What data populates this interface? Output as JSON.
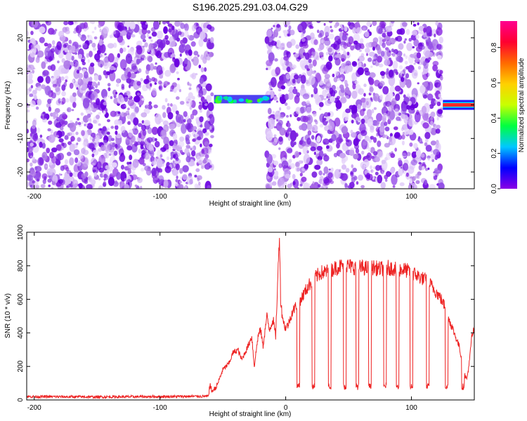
{
  "title": "S196.2025.291.03.04.G29",
  "chart_data": [
    {
      "type": "heatmap",
      "panel": "spectrogram",
      "xlabel": "Height of straight line (km)",
      "ylabel": "Frequency (Hz)",
      "xlim": [
        -206,
        150
      ],
      "ylim": [
        -25,
        25
      ],
      "xticks": [
        -200,
        -100,
        0,
        100
      ],
      "yticks": [
        20,
        10,
        0,
        -10,
        -20
      ],
      "colorbar": {
        "label": "Normalized spectral amplitude",
        "range": [
          0.0,
          0.95
        ],
        "ticks": [
          0.0,
          0.2,
          0.4,
          0.6,
          0.8
        ],
        "colormap": [
          "#8a00e6",
          "#0000ff",
          "#00c8ff",
          "#00ff40",
          "#c8ff00",
          "#ffd000",
          "#ff6a00",
          "#ff0030",
          "#ff0090"
        ]
      },
      "noise_color": "#8a2be2",
      "noise_regions_km": [
        [
          -206,
          -58
        ],
        [
          -15,
          124
        ]
      ],
      "signal_segments": [
        {
          "x_start": -57,
          "x_end": -12,
          "freq_hz": 1.5,
          "amplitude": 0.3
        },
        {
          "x_start": 125,
          "x_end": 150,
          "freq_hz": 0.0,
          "amplitude": 0.9
        }
      ],
      "grid": false
    },
    {
      "type": "line",
      "panel": "snr",
      "xlabel": "Height of straight line (km)",
      "ylabel": "SNR (10 * v/v)",
      "xlim": [
        -206,
        150
      ],
      "ylim": [
        0,
        1000
      ],
      "xticks": [
        -200,
        -100,
        0,
        100
      ],
      "yticks": [
        0,
        200,
        400,
        600,
        800,
        1000
      ],
      "series": [
        {
          "color": "#ee2222",
          "x": [
            -206,
            -150,
            -100,
            -62,
            -55,
            -50,
            -45,
            -42,
            -38,
            -35,
            -30,
            -27,
            -25,
            -22,
            -20,
            -18,
            -15,
            -13,
            -10,
            -8,
            -6,
            -5,
            -4,
            -3,
            -1,
            0,
            2,
            5,
            8,
            10,
            12,
            15,
            18,
            20,
            22,
            25,
            28,
            30,
            35,
            40,
            45,
            50,
            55,
            60,
            65,
            70,
            75,
            80,
            85,
            90,
            95,
            100,
            105,
            110,
            115,
            118,
            120,
            123,
            125,
            128,
            130,
            133,
            135,
            138,
            140,
            142,
            144,
            146,
            148,
            150
          ],
          "y": [
            20,
            18,
            20,
            22,
            80,
            180,
            220,
            280,
            300,
            240,
            320,
            380,
            200,
            380,
            420,
            320,
            500,
            420,
            480,
            380,
            780,
            1000,
            600,
            520,
            440,
            430,
            450,
            520,
            560,
            580,
            600,
            640,
            680,
            700,
            720,
            740,
            760,
            760,
            770,
            790,
            800,
            800,
            790,
            790,
            785,
            790,
            780,
            790,
            785,
            780,
            775,
            760,
            740,
            720,
            690,
            660,
            640,
            610,
            580,
            540,
            480,
            420,
            380,
            320,
            240,
            160,
            120,
            220,
            380,
            420
          ]
        }
      ],
      "dips": [
        {
          "x": -60,
          "width": 1.0
        },
        {
          "x": 10,
          "width": 1.2
        },
        {
          "x": 22,
          "width": 1.2
        },
        {
          "x": 35,
          "width": 1.2
        },
        {
          "x": 47,
          "width": 1.2
        },
        {
          "x": 57,
          "width": 1.2
        },
        {
          "x": 67,
          "width": 1.2
        },
        {
          "x": 79,
          "width": 1.2
        },
        {
          "x": 89,
          "width": 1.2
        },
        {
          "x": 100,
          "width": 1.2
        },
        {
          "x": 113,
          "width": 1.2
        },
        {
          "x": 128,
          "width": 1.2
        },
        {
          "x": 141,
          "width": 1.2
        }
      ],
      "grid": false
    }
  ]
}
